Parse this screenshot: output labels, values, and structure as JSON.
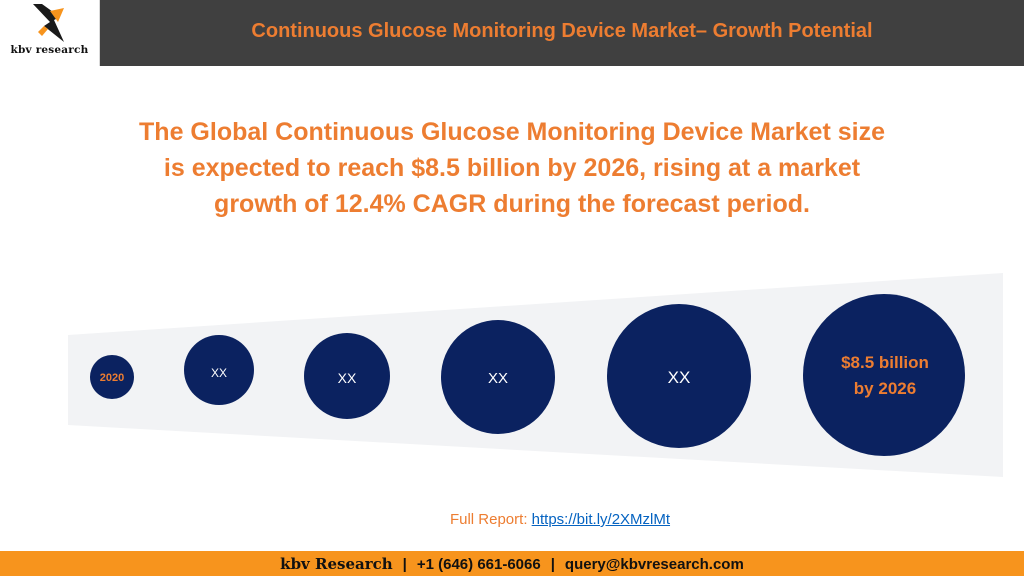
{
  "header": {
    "logo_text": "kbv research",
    "title": "Continuous Glucose Monitoring Device Market– Growth Potential"
  },
  "headline": {
    "line1": "The Global Continuous Glucose Monitoring Device Market size",
    "line2": "is expected to reach $8.5 billion by 2026, rising at a market",
    "line3": "growth of 12.4% CAGR during the forecast period."
  },
  "growth_bubbles": {
    "start_label": "2020",
    "steps": [
      "XX",
      "XX",
      "XX",
      "XX"
    ],
    "final_line1": "$8.5 billion",
    "final_line2": "by 2026"
  },
  "report": {
    "label": "Full Report: ",
    "link_text": "https://bit.ly/2XMzlMt"
  },
  "footer": {
    "brand": "kbv Research",
    "phone": "+1 (646) 661-6066",
    "email": "query@kbvresearch.com"
  },
  "colors": {
    "accent": "#ed7d31",
    "header_bg": "#404040",
    "bubble": "#0b2260",
    "footer_bg": "#f7941d",
    "funnel_bg": "#f2f3f5"
  }
}
